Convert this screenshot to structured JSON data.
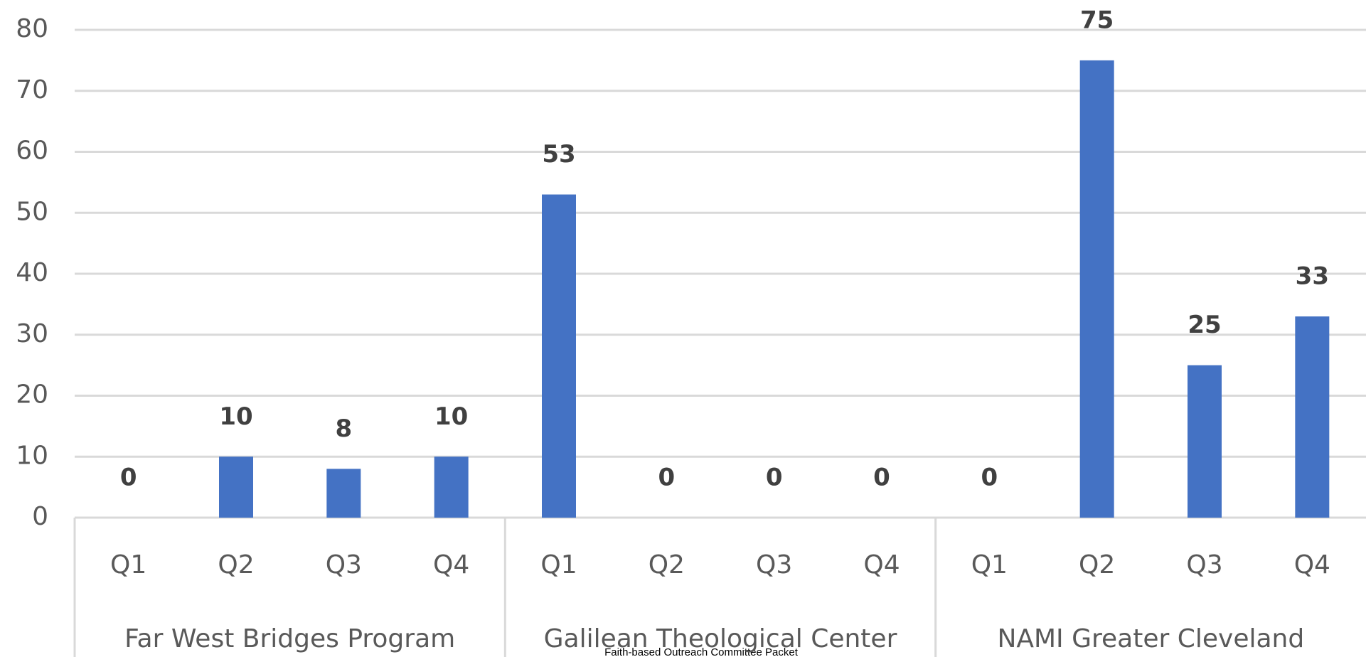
{
  "chart_data": {
    "type": "bar",
    "categories": [
      "Q1",
      "Q2",
      "Q3",
      "Q4",
      "Q1",
      "Q2",
      "Q3",
      "Q4",
      "Q1",
      "Q2",
      "Q3",
      "Q4"
    ],
    "groups": [
      "Far West Bridges Program",
      "Galilean Theological Center",
      "NAMI Greater Cleveland"
    ],
    "values": [
      0,
      10,
      8,
      10,
      53,
      0,
      0,
      0,
      0,
      75,
      25,
      33
    ],
    "color": "#4472c4",
    "ylim": [
      0,
      80
    ],
    "yticks": [
      0,
      10,
      20,
      30,
      40,
      50,
      60,
      70,
      80
    ],
    "grid": true
  },
  "footer": "Faith-based Outreach Committee Packet"
}
